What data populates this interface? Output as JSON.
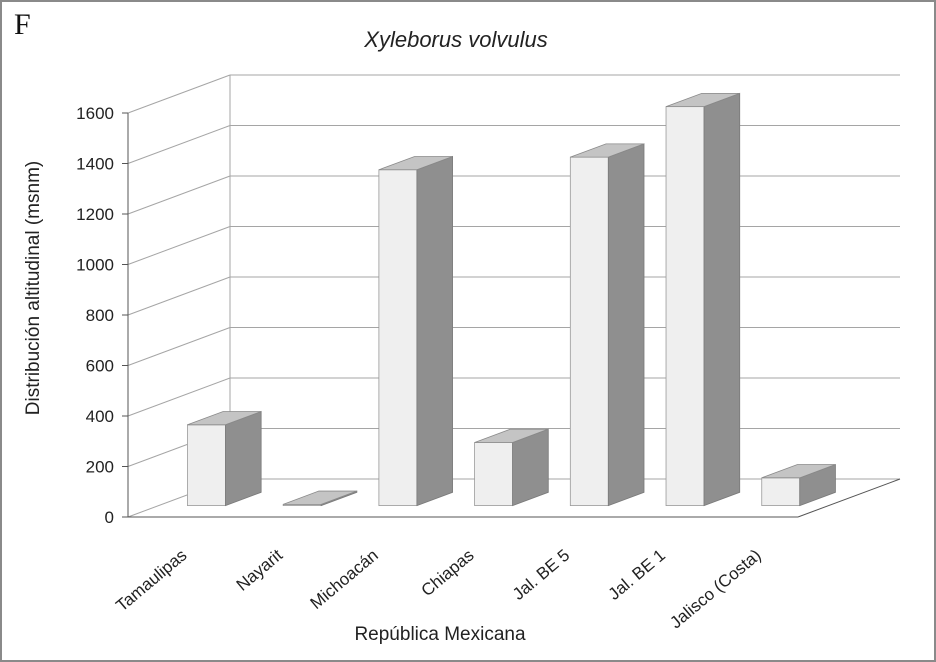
{
  "panel_label": "F",
  "chart_data": {
    "type": "bar",
    "title": "Xyleborus volvulus",
    "xlabel": "República Mexicana",
    "ylabel": "Distribución altitudinal (msnm)",
    "categories": [
      "Tamaulipas",
      "Nayarit",
      "Michoacán",
      "Chiapas",
      "Jal. BE 5",
      "Jal. BE 1",
      "Jalisco (Costa)"
    ],
    "values": [
      320,
      5,
      1330,
      250,
      1380,
      1580,
      110
    ],
    "ylim": [
      0,
      1600
    ],
    "yticks": [
      0,
      200,
      400,
      600,
      800,
      1000,
      1200,
      1400,
      1600
    ],
    "grid": true,
    "legend": "none",
    "three_d": true,
    "colors": {
      "bar_front": "#efefef",
      "bar_side": "#8f8f8f",
      "bar_top": "#c4c4c4",
      "grid": "#a5a5a5",
      "text": "#222222"
    }
  }
}
